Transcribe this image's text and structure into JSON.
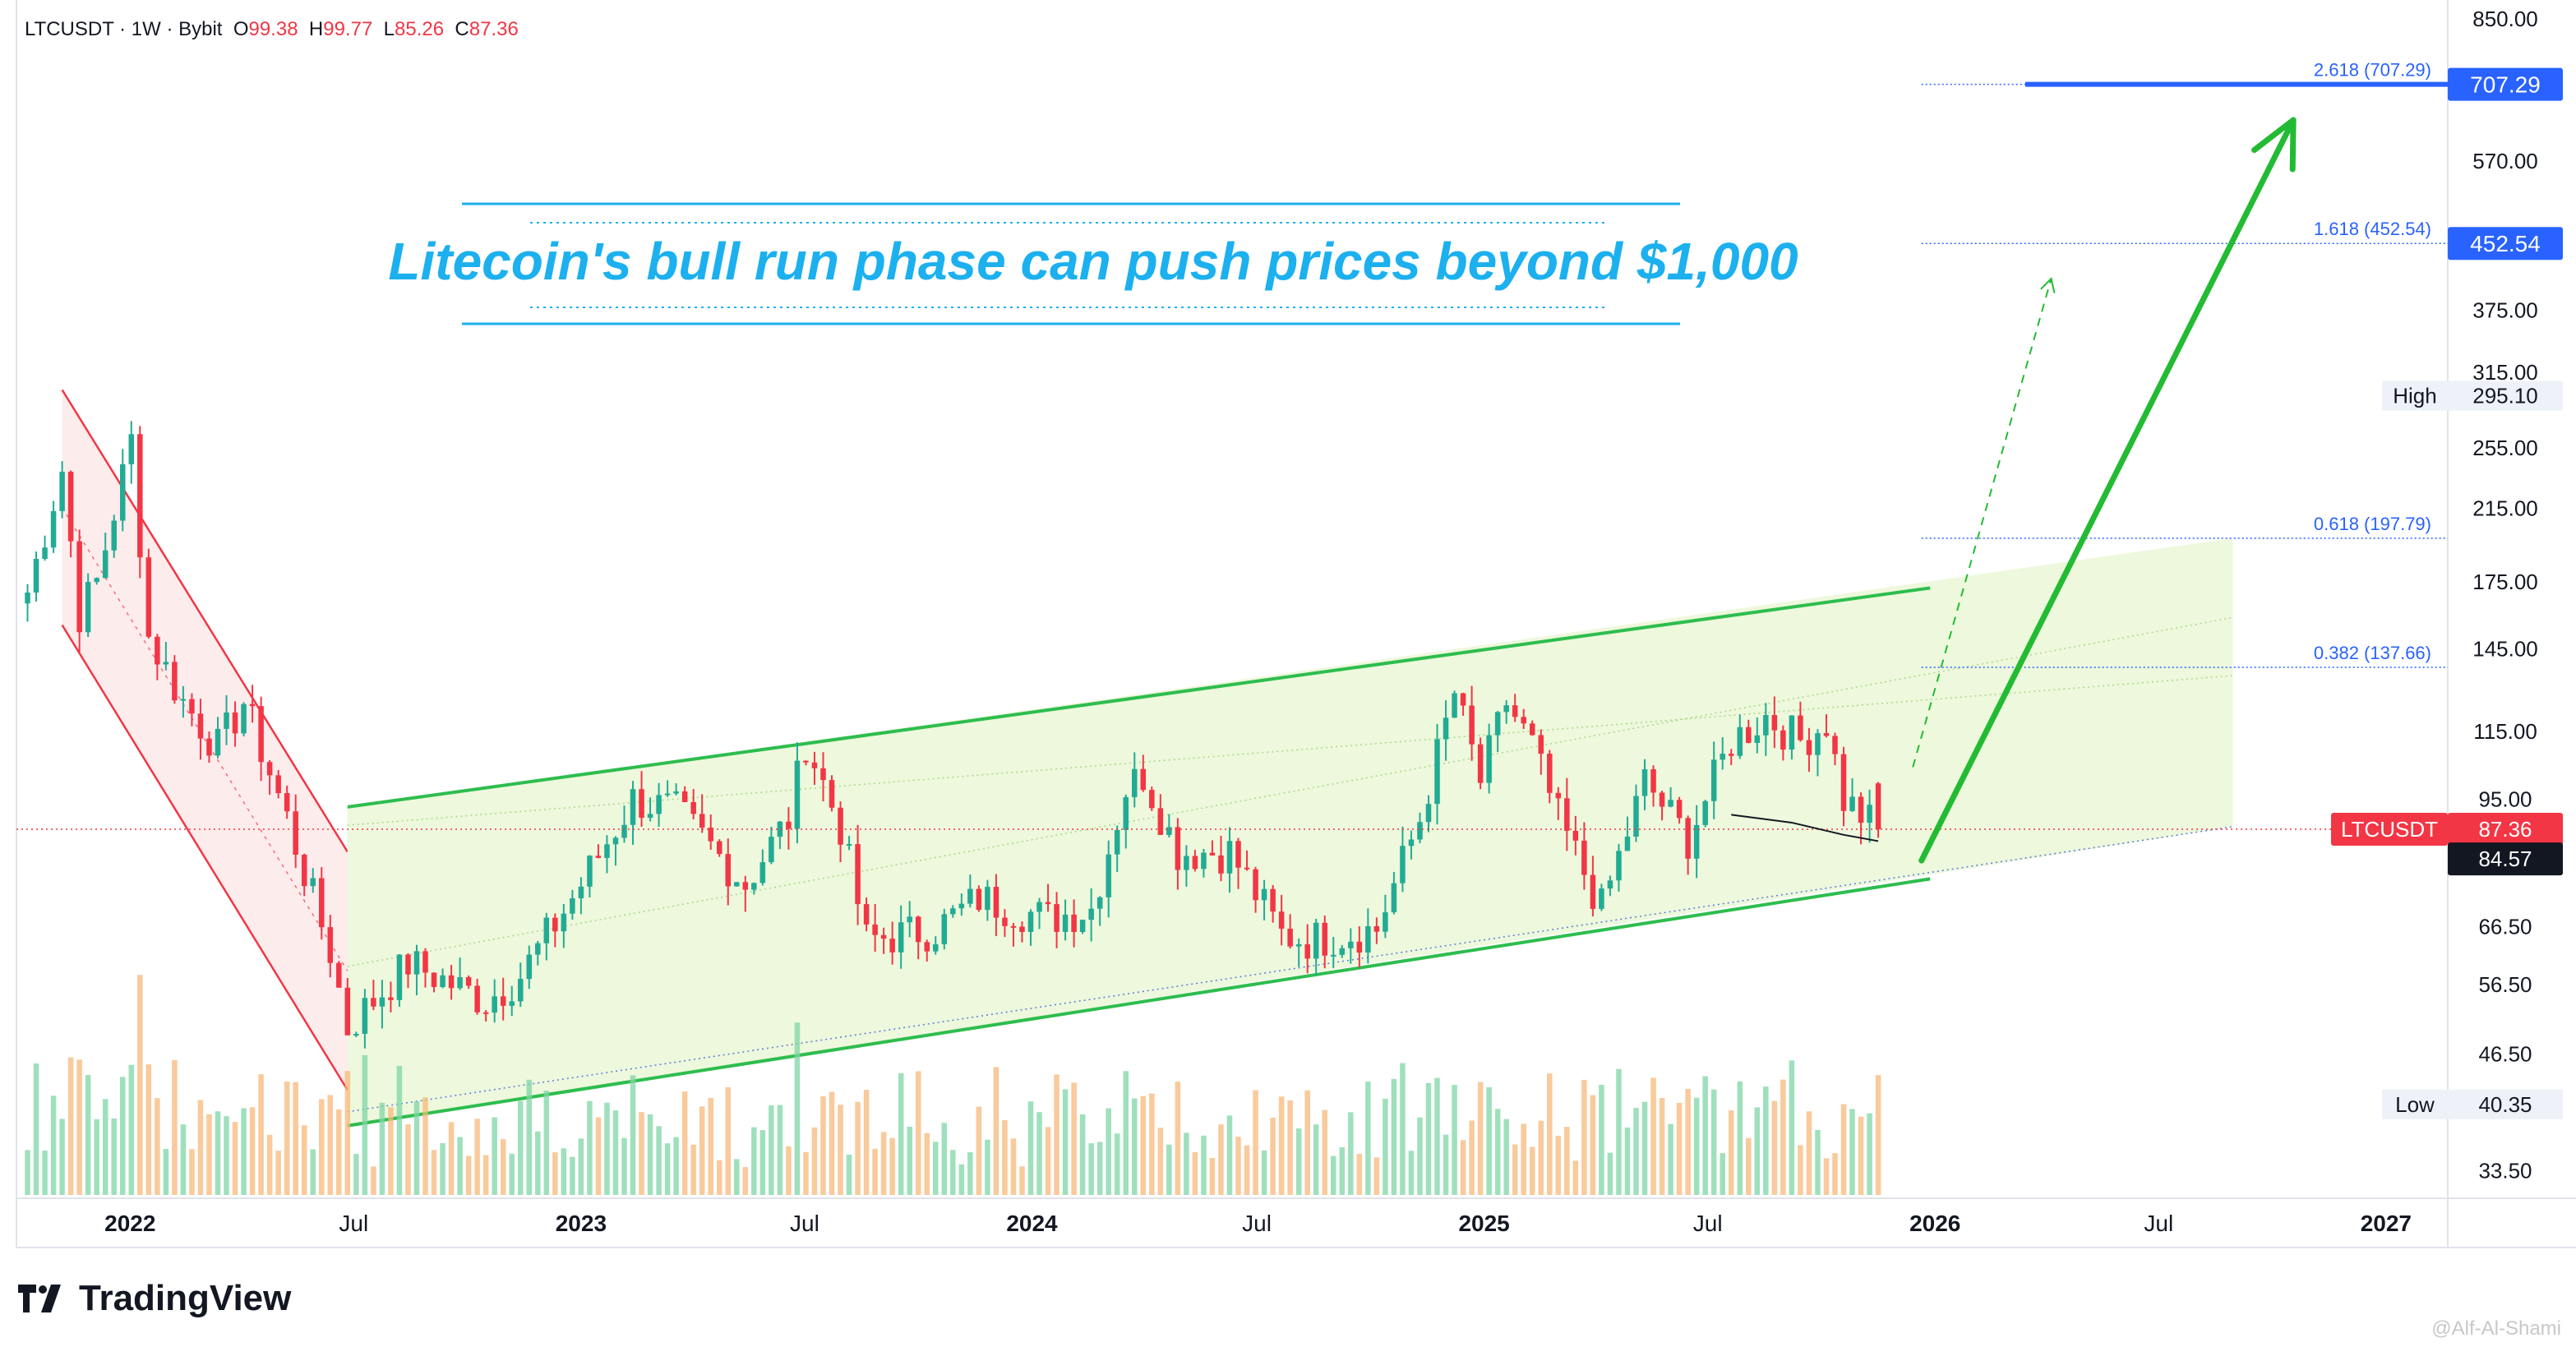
{
  "header": {
    "symbol": "LTCUSDT · 1W · Bybit",
    "o_label": "O",
    "o_value": "99.38",
    "h_label": "H",
    "h_value": "99.77",
    "l_label": "L",
    "l_value": "85.26",
    "c_label": "C",
    "c_value": "87.36"
  },
  "headline": "Litecoin's bull run phase can push prices beyond $1,000",
  "branding": {
    "logo_text": "TradingView",
    "watermark": "@Alf-Al-Shami"
  },
  "colors": {
    "up": "#22ab94",
    "down": "#f23645",
    "channel_line": "#2ebd4e",
    "channel_fill": "#eaf7d6",
    "down_channel": "#f23645",
    "down_fill": "#fde7e7",
    "fib": "#2962ff",
    "headline": "#1cb0ef",
    "arrow": "#22bb33"
  },
  "chart_data": {
    "type": "candlestick",
    "symbol": "LTCUSDT",
    "interval": "1W",
    "exchange": "Bybit",
    "y_scale": "log",
    "ylim": [
      31,
      880
    ],
    "x_range": [
      "2021-10-01",
      "2027-02-20"
    ],
    "x_ticks": [
      {
        "label": "2022",
        "date": "2022-01-01",
        "bold": true
      },
      {
        "label": "Jul",
        "date": "2022-07-01",
        "bold": false
      },
      {
        "label": "2023",
        "date": "2023-01-01",
        "bold": true
      },
      {
        "label": "Jul",
        "date": "2023-07-01",
        "bold": false
      },
      {
        "label": "2024",
        "date": "2024-01-01",
        "bold": true
      },
      {
        "label": "Jul",
        "date": "2024-07-01",
        "bold": false
      },
      {
        "label": "2025",
        "date": "2025-01-01",
        "bold": true
      },
      {
        "label": "Jul",
        "date": "2025-07-01",
        "bold": false
      },
      {
        "label": "2026",
        "date": "2026-01-01",
        "bold": true
      },
      {
        "label": "Jul",
        "date": "2026-07-01",
        "bold": false
      },
      {
        "label": "2027",
        "date": "2027-01-01",
        "bold": true
      }
    ],
    "y_ticks": [
      "850.00",
      "707.29",
      "570.00",
      "452.54",
      "375.00",
      "315.00",
      "255.00",
      "215.00",
      "175.00",
      "145.00",
      "115.00",
      "95.00",
      "66.50",
      "56.50",
      "46.50",
      "33.50"
    ],
    "price_keypoints": [
      {
        "date": "2021-10-10",
        "price": 170
      },
      {
        "date": "2021-11-07",
        "price": 240
      },
      {
        "date": "2021-11-21",
        "price": 160
      },
      {
        "date": "2021-12-05",
        "price": 175
      },
      {
        "date": "2022-01-02",
        "price": 260
      },
      {
        "date": "2022-01-16",
        "price": 150
      },
      {
        "date": "2022-02-13",
        "price": 125
      },
      {
        "date": "2022-03-13",
        "price": 110
      },
      {
        "date": "2022-04-03",
        "price": 125
      },
      {
        "date": "2022-05-08",
        "price": 90
      },
      {
        "date": "2022-06-12",
        "price": 62
      },
      {
        "date": "2022-06-26",
        "price": 50
      },
      {
        "date": "2022-08-14",
        "price": 60
      },
      {
        "date": "2022-10-16",
        "price": 54
      },
      {
        "date": "2022-11-13",
        "price": 58
      },
      {
        "date": "2022-12-25",
        "price": 72
      },
      {
        "date": "2023-02-12",
        "price": 95
      },
      {
        "date": "2023-03-19",
        "price": 92
      },
      {
        "date": "2023-05-14",
        "price": 75
      },
      {
        "date": "2023-06-18",
        "price": 90
      },
      {
        "date": "2023-07-02",
        "price": 112
      },
      {
        "date": "2023-07-30",
        "price": 88
      },
      {
        "date": "2023-08-20",
        "price": 64
      },
      {
        "date": "2023-10-15",
        "price": 66
      },
      {
        "date": "2023-11-19",
        "price": 72
      },
      {
        "date": "2024-01-14",
        "price": 68
      },
      {
        "date": "2024-02-18",
        "price": 70
      },
      {
        "date": "2024-03-17",
        "price": 98
      },
      {
        "date": "2024-03-31",
        "price": 102
      },
      {
        "date": "2024-04-28",
        "price": 82
      },
      {
        "date": "2024-06-09",
        "price": 82
      },
      {
        "date": "2024-07-21",
        "price": 65
      },
      {
        "date": "2024-08-11",
        "price": 64
      },
      {
        "date": "2024-10-06",
        "price": 66
      },
      {
        "date": "2024-11-10",
        "price": 90
      },
      {
        "date": "2024-12-08",
        "price": 128
      },
      {
        "date": "2024-12-29",
        "price": 100
      },
      {
        "date": "2025-01-19",
        "price": 125
      },
      {
        "date": "2025-02-09",
        "price": 110
      },
      {
        "date": "2025-03-02",
        "price": 90
      },
      {
        "date": "2025-04-06",
        "price": 70
      },
      {
        "date": "2025-05-11",
        "price": 100
      },
      {
        "date": "2025-06-15",
        "price": 85
      },
      {
        "date": "2025-07-20",
        "price": 112
      },
      {
        "date": "2025-08-17",
        "price": 120
      },
      {
        "date": "2025-09-14",
        "price": 112
      },
      {
        "date": "2025-10-05",
        "price": 118
      },
      {
        "date": "2025-10-19",
        "price": 95
      },
      {
        "date": "2025-11-16",
        "price": 87.36
      }
    ],
    "last_candle": {
      "open": 99.38,
      "high": 99.77,
      "low": 85.26,
      "close": 87.36
    },
    "price_labels": [
      {
        "label": "707.29",
        "price": 707.29,
        "style": "fib-blue"
      },
      {
        "label": "452.54",
        "price": 452.54,
        "style": "fib-blue"
      },
      {
        "label": "High",
        "value": "295.10",
        "price": 295.1,
        "style": "gray"
      },
      {
        "label": "LTCUSDT",
        "value": "87.36",
        "price": 87.36,
        "style": "red"
      },
      {
        "label": "",
        "value": "84.57",
        "price": 84.57,
        "style": "black"
      },
      {
        "label": "Low",
        "value": "40.35",
        "price": 40.35,
        "style": "gray"
      }
    ],
    "fib_levels": [
      {
        "label": "2.618 (707.29)",
        "price": 707.29
      },
      {
        "label": "1.618 (452.54)",
        "price": 452.54
      },
      {
        "label": "0.618 (197.79)",
        "price": 197.79
      },
      {
        "label": "0.382 (137.66)",
        "price": 137.66
      }
    ],
    "ascending_channel": {
      "start": "2022-06-26",
      "end": "2025-12-28",
      "upper": [
        93,
        172
      ],
      "lower": [
        38,
        76
      ],
      "extended_fill_end": "2026-08-30",
      "extended_upper": 197.79,
      "extended_lower": 88
    },
    "descending_channel": {
      "start": "2021-11-07",
      "end": "2022-06-26",
      "upper": [
        300,
        82
      ],
      "lower": [
        155,
        42
      ]
    },
    "projection_arrow": {
      "from": {
        "date": "2025-12-21",
        "price": 80
      },
      "to": {
        "date": "2026-10-18",
        "price": 640
      }
    },
    "dashed_arrow": {
      "from": {
        "date": "2025-12-14",
        "price": 104
      },
      "to": {
        "date": "2026-04-05",
        "price": 410
      }
    }
  }
}
